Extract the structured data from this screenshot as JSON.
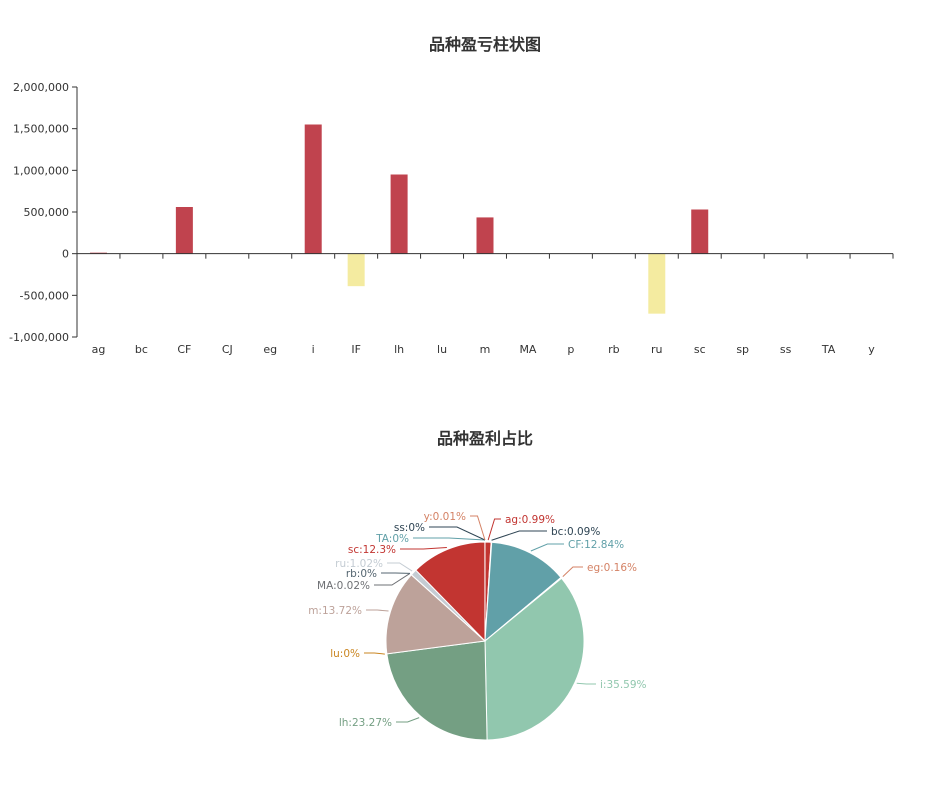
{
  "chart_data": [
    {
      "type": "bar",
      "title": "品种盈亏柱状图",
      "xlabel": "",
      "ylabel": "",
      "categories": [
        "ag",
        "bc",
        "CF",
        "CJ",
        "eg",
        "i",
        "IF",
        "lh",
        "lu",
        "m",
        "MA",
        "p",
        "rb",
        "ru",
        "sc",
        "sp",
        "ss",
        "TA",
        "y"
      ],
      "values": [
        12000,
        1000,
        560000,
        0,
        2000,
        1550000,
        -390000,
        950000,
        0,
        435000,
        200,
        0,
        0,
        -720000,
        530000,
        0,
        0,
        0,
        200
      ],
      "yticks": [
        "2,000,000",
        "1,500,000",
        "1,000,000",
        "500,000",
        "0",
        "-500,000",
        "-1,000,000"
      ],
      "ylim": [
        -1000000,
        2000000
      ],
      "colors": {
        "positive": "#c0434e",
        "negative": "#f4eba0",
        "axis": "#333333"
      },
      "grid": false
    },
    {
      "type": "pie",
      "title": "品种盈利占比",
      "slices": [
        {
          "name": "ag",
          "label": "ag:0.99%",
          "value": 0.99,
          "color": "#c23531"
        },
        {
          "name": "bc",
          "label": "bc:0.09%",
          "value": 0.09,
          "color": "#2f4554"
        },
        {
          "name": "CF",
          "label": "CF:12.84%",
          "value": 12.84,
          "color": "#61a0a8"
        },
        {
          "name": "eg",
          "label": "eg:0.16%",
          "value": 0.16,
          "color": "#d48265"
        },
        {
          "name": "i",
          "label": "i:35.59%",
          "value": 35.59,
          "color": "#91c7ae"
        },
        {
          "name": "lh",
          "label": "lh:23.27%",
          "value": 23.27,
          "color": "#749f83"
        },
        {
          "name": "lu",
          "label": "lu:0%",
          "value": 0,
          "color": "#ca8622"
        },
        {
          "name": "m",
          "label": "m:13.72%",
          "value": 13.72,
          "color": "#bda29a"
        },
        {
          "name": "MA",
          "label": "MA:0.02%",
          "value": 0.02,
          "color": "#6e7074"
        },
        {
          "name": "rb",
          "label": "rb:0%",
          "value": 0,
          "color": "#546570"
        },
        {
          "name": "ru",
          "label": "ru:1.02%",
          "value": 1.02,
          "color": "#c4ccd3"
        },
        {
          "name": "sc",
          "label": "sc:12.3%",
          "value": 12.3,
          "color": "#c23531"
        },
        {
          "name": "TA",
          "label": "TA:0%",
          "value": 0,
          "color": "#61a0a8"
        },
        {
          "name": "ss",
          "label": "ss:0%",
          "value": 0,
          "color": "#2f4554"
        },
        {
          "name": "y",
          "label": "y:0.01%",
          "value": 0.01,
          "color": "#d48265"
        }
      ]
    }
  ]
}
